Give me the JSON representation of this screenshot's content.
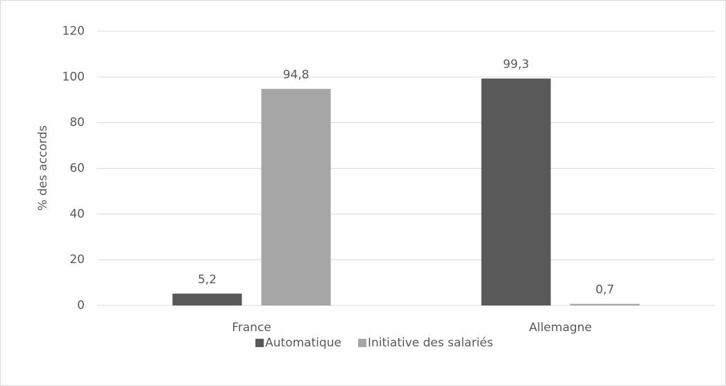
{
  "chart_data": {
    "type": "bar",
    "categories": [
      "France",
      "Allemagne"
    ],
    "series": [
      {
        "name": "Automatique",
        "color": "#595959",
        "values": [
          5.2,
          99.3
        ],
        "value_labels": [
          "5,2",
          "99,3"
        ]
      },
      {
        "name": "Initiative des salariés",
        "color": "#a6a6a6",
        "values": [
          94.8,
          0.7
        ],
        "value_labels": [
          "94,8",
          "0,7"
        ]
      }
    ],
    "ylabel": "% des accords",
    "ylim": [
      0,
      120
    ],
    "yticks": [
      0,
      20,
      40,
      60,
      80,
      100,
      120
    ],
    "grid": true,
    "legend": "bottom"
  }
}
